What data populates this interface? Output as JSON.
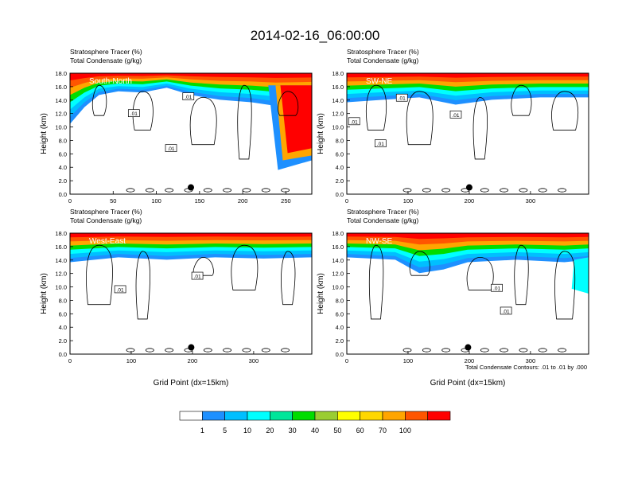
{
  "figure_title": "2014-02-16_06:00:00",
  "footnote": "Total Condensate Contours: .01 to .01 by .000",
  "xlabel": "Grid Point (dx=15km)",
  "colorbar": {
    "levels": [
      "1",
      "5",
      "10",
      "20",
      "30",
      "40",
      "50",
      "60",
      "70",
      "100"
    ],
    "colors": [
      "#ffffff",
      "#1e90ff",
      "#00bfff",
      "#00ffff",
      "#00e69a",
      "#00dd00",
      "#9acd32",
      "#ffff00",
      "#ffd700",
      "#ffa500",
      "#ff5500",
      "#ff0000"
    ]
  },
  "chart_data": [
    {
      "type": "contour",
      "name": "South-North",
      "label": "South-North",
      "title_line1": "Stratosphere Tracer   (%)",
      "title_line2": "Total Condensate   (g/kg)",
      "ylabel": "Height (km)",
      "xlabel": "",
      "xlim": [
        0,
        280
      ],
      "ylim": [
        0,
        18
      ],
      "xticks": [
        "0",
        "50",
        "100",
        "150",
        "200",
        "250"
      ],
      "yticks": [
        "0.0",
        "2.0",
        "4.0",
        "6.0",
        "8.0",
        "10.0",
        "12.0",
        "14.0",
        "16.0",
        "18.0"
      ],
      "contour_labels": [
        {
          "text": ".01",
          "x": 74,
          "y": 12.0
        },
        {
          "text": ".01",
          "x": 137,
          "y": 14.5
        },
        {
          "text": ".01",
          "x": 117,
          "y": 6.8
        }
      ],
      "marker": {
        "x": 140,
        "y": 1.0
      }
    },
    {
      "type": "contour",
      "name": "SW-NE",
      "label": "SW-NE",
      "title_line1": "Stratosphere Tracer   (%)",
      "title_line2": "Total Condensate   (g/kg)",
      "ylabel": "Height (km)",
      "xlabel": "",
      "xlim": [
        0,
        395
      ],
      "ylim": [
        0,
        18
      ],
      "xticks": [
        "0",
        "100",
        "200",
        "300"
      ],
      "yticks": [
        "0.0",
        "2.0",
        "4.0",
        "6.0",
        "8.0",
        "10.0",
        "12.0",
        "14.0",
        "16.0",
        "18.0"
      ],
      "contour_labels": [
        {
          "text": ".01",
          "x": 90,
          "y": 14.3
        },
        {
          "text": ".01",
          "x": 178,
          "y": 11.8
        },
        {
          "text": ".01",
          "x": 12,
          "y": 10.8
        },
        {
          "text": ".01",
          "x": 55,
          "y": 7.5
        }
      ],
      "marker": {
        "x": 200,
        "y": 1.0
      }
    },
    {
      "type": "contour",
      "name": "West-East",
      "label": "West-East",
      "title_line1": "Stratosphere Tracer   (%)",
      "title_line2": "Total Condensate   (g/kg)",
      "ylabel": "Height (km)",
      "xlabel": "Grid Point (dx=15km)",
      "xlim": [
        0,
        395
      ],
      "ylim": [
        0,
        18
      ],
      "xticks": [
        "0",
        "100",
        "200",
        "300"
      ],
      "yticks": [
        "0.0",
        "2.0",
        "4.0",
        "6.0",
        "8.0",
        "10.0",
        "12.0",
        "14.0",
        "16.0",
        "18.0"
      ],
      "contour_labels": [
        {
          "text": ".01",
          "x": 82,
          "y": 9.6
        },
        {
          "text": ".01",
          "x": 208,
          "y": 11.6
        }
      ],
      "marker": {
        "x": 198,
        "y": 1.0
      }
    },
    {
      "type": "contour",
      "name": "NW-SE",
      "label": "NW-SE",
      "title_line1": "Stratosphere Tracer   (%)",
      "title_line2": "Total Condensate   (g/kg)",
      "ylabel": "Height (km)",
      "xlabel": "Grid Point (dx=15km)",
      "xlim": [
        0,
        395
      ],
      "ylim": [
        0,
        18
      ],
      "xticks": [
        "0",
        "100",
        "200",
        "300"
      ],
      "yticks": [
        "0.0",
        "2.0",
        "4.0",
        "6.0",
        "8.0",
        "10.0",
        "12.0",
        "14.0",
        "16.0",
        "18.0"
      ],
      "contour_labels": [
        {
          "text": ".01",
          "x": 245,
          "y": 9.8
        },
        {
          "text": ".01",
          "x": 260,
          "y": 6.4
        }
      ],
      "marker": {
        "x": 198,
        "y": 1.0
      }
    }
  ]
}
